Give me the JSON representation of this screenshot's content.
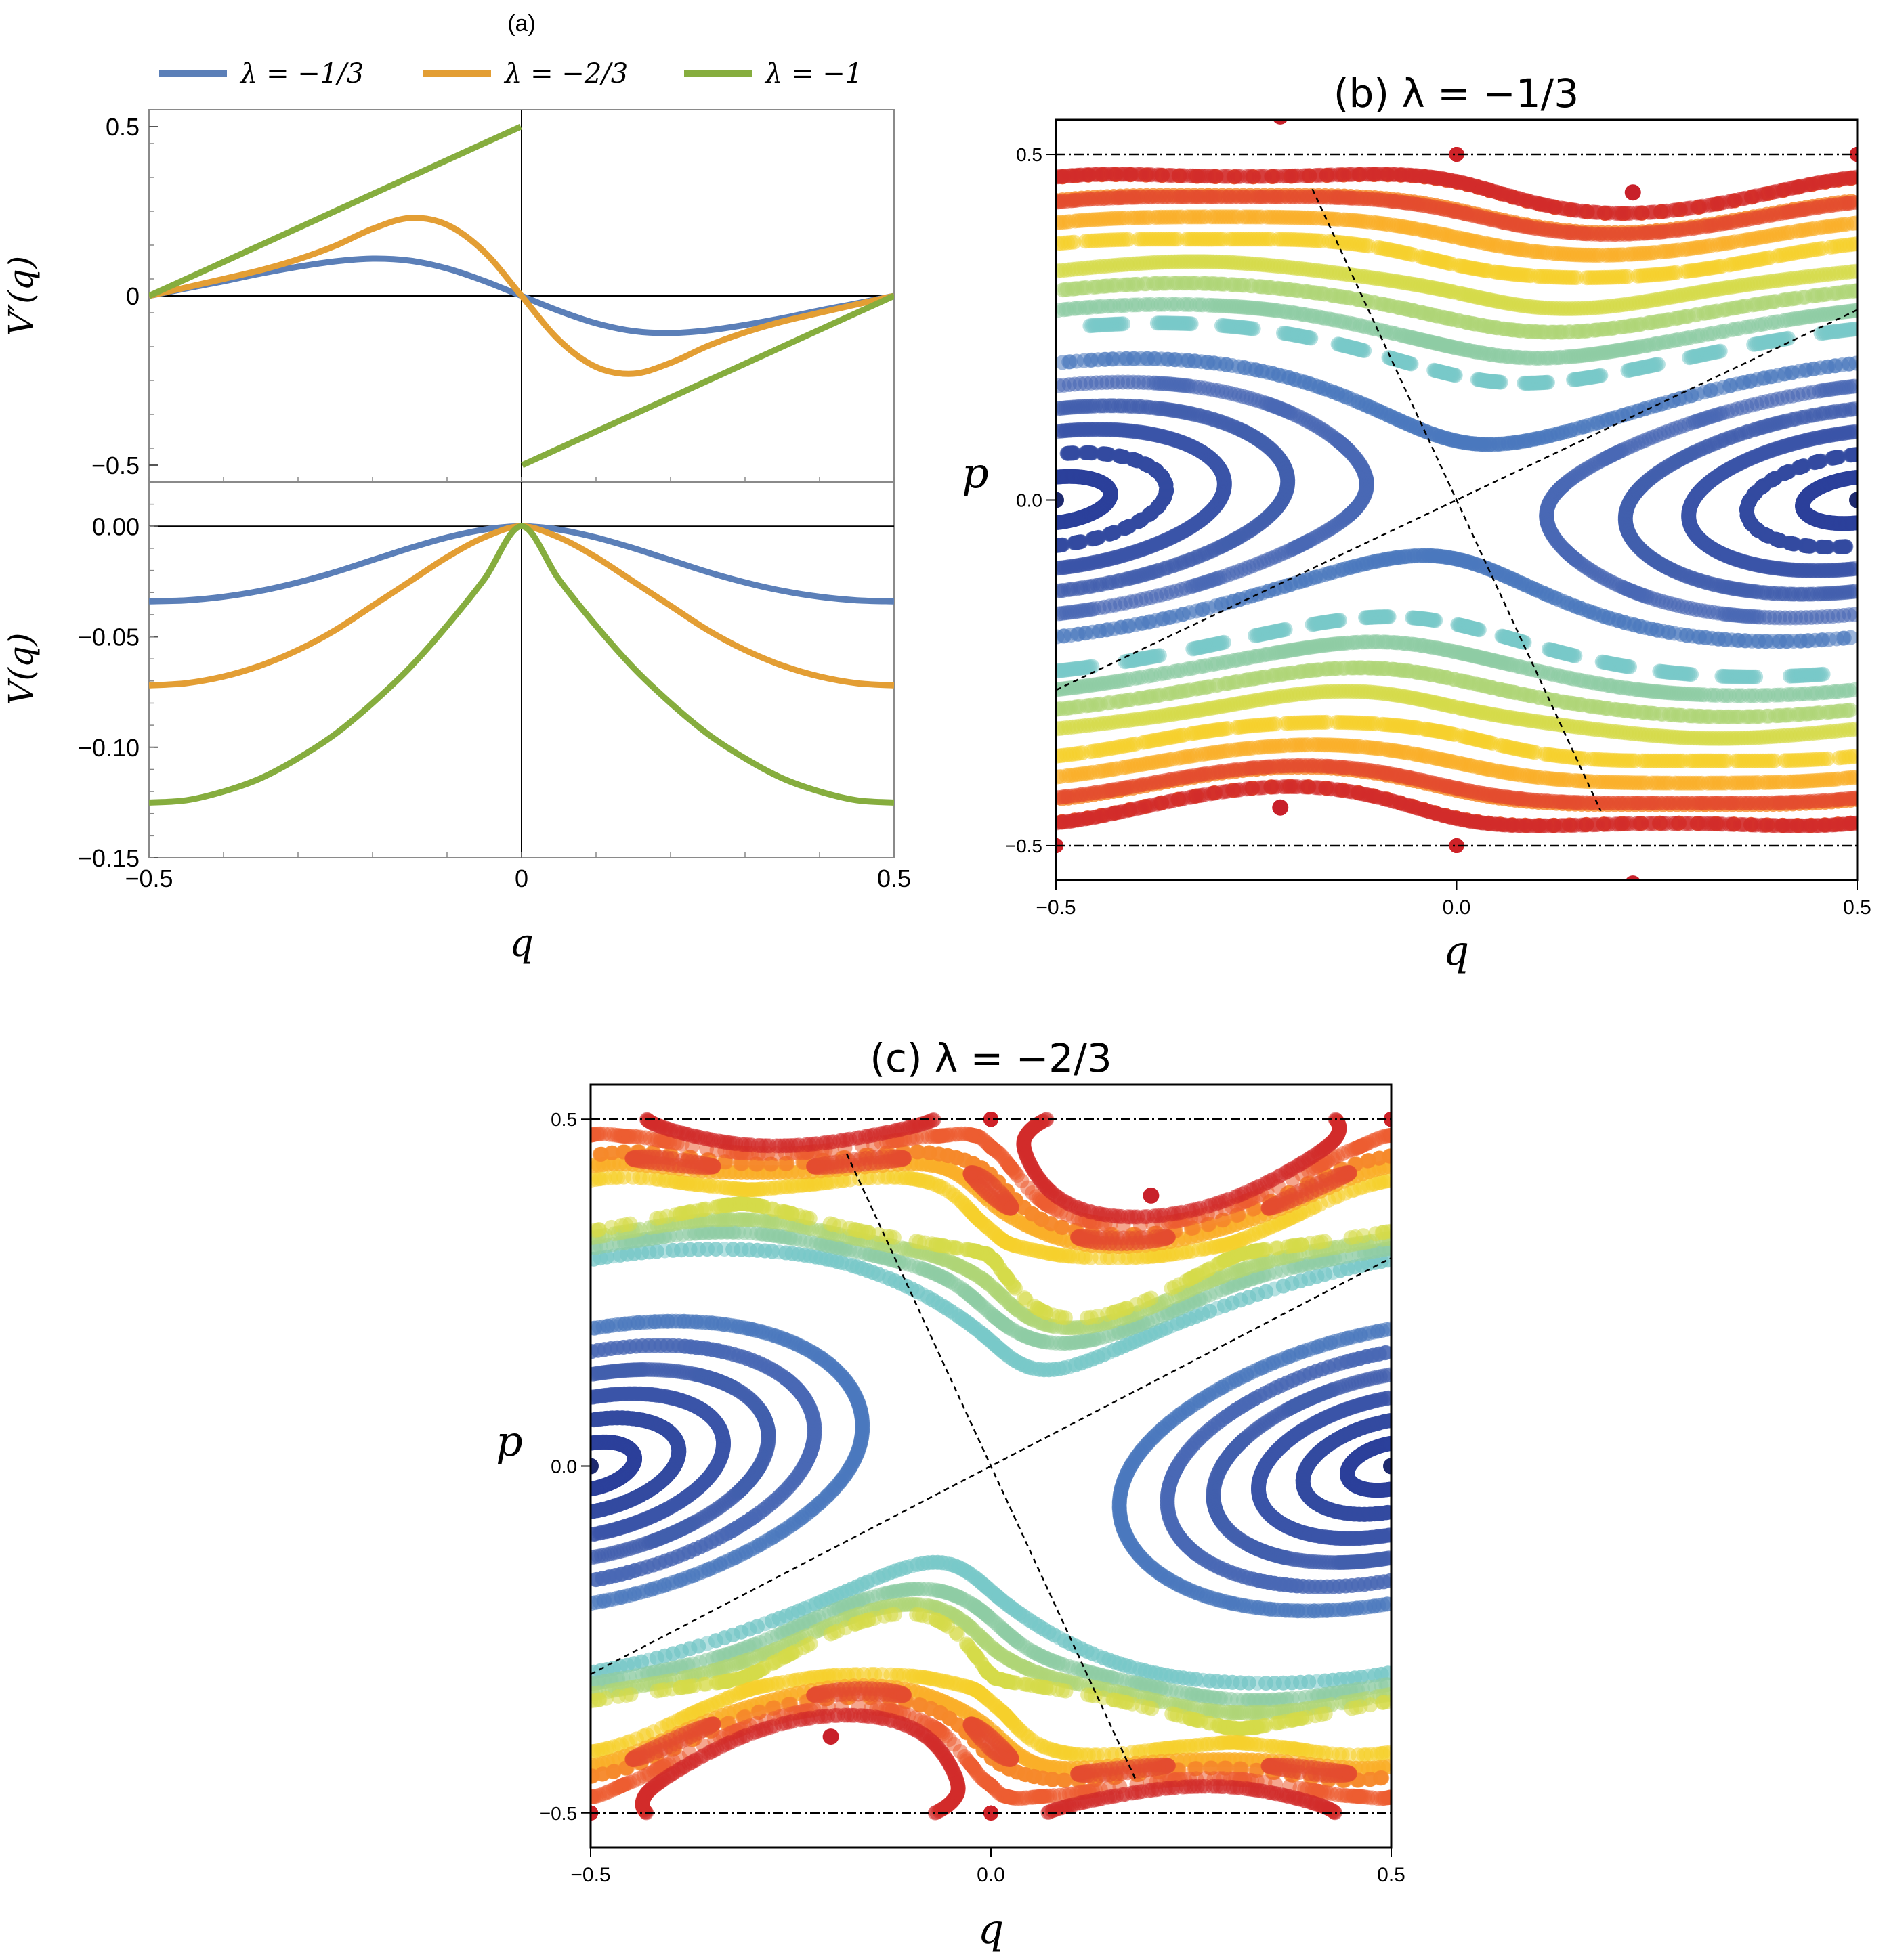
{
  "chart_data": [
    {
      "id": "a",
      "type": "line",
      "panel_label": "(a)",
      "legend": [
        "λ = −1/3",
        "λ = −2/3",
        "λ = −1"
      ],
      "series_colors": [
        "#5b7fb8",
        "#e39e34",
        "#86ad3e"
      ],
      "lambdas": [
        -0.3333,
        -0.6667,
        -1.0
      ],
      "xlabel": "q",
      "xlim": [
        -0.5,
        0.5
      ],
      "xticks": [
        "−0.5",
        "0",
        "0.5"
      ],
      "top": {
        "ylabel": "V′(q)",
        "ylim": [
          -0.55,
          0.55
        ],
        "yticks": [
          "0.5",
          "0",
          "−0.5"
        ],
        "series": [
          {
            "name": "λ = −1/3",
            "x": [
              -0.5,
              -0.45,
              -0.4,
              -0.35,
              -0.3,
              -0.25,
              -0.2,
              -0.15,
              -0.1,
              -0.05,
              0,
              0.05,
              0.1,
              0.15,
              0.2,
              0.25,
              0.3,
              0.35,
              0.4,
              0.45,
              0.5
            ],
            "values": [
              0,
              0.022,
              0.043,
              0.066,
              0.086,
              0.102,
              0.11,
              0.104,
              0.081,
              0.044,
              0,
              -0.044,
              -0.081,
              -0.104,
              -0.11,
              -0.102,
              -0.086,
              -0.066,
              -0.043,
              -0.022,
              0
            ]
          },
          {
            "name": "λ = −2/3",
            "x": [
              -0.5,
              -0.45,
              -0.4,
              -0.35,
              -0.3,
              -0.25,
              -0.2,
              -0.15,
              -0.1,
              -0.05,
              0,
              0.05,
              0.1,
              0.15,
              0.2,
              0.25,
              0.3,
              0.35,
              0.4,
              0.45,
              0.5
            ],
            "values": [
              0,
              0.025,
              0.05,
              0.076,
              0.108,
              0.148,
              0.198,
              0.23,
              0.21,
              0.13,
              0,
              -0.13,
              -0.21,
              -0.23,
              -0.198,
              -0.148,
              -0.108,
              -0.076,
              -0.05,
              -0.025,
              0
            ]
          },
          {
            "name": "λ = −1",
            "x": [
              -0.5,
              -0.001,
              0.001,
              0.5
            ],
            "values": [
              0,
              0.5,
              -0.5,
              0
            ]
          }
        ]
      },
      "bottom": {
        "ylabel": "V(q)",
        "ylim": [
          -0.15,
          0.02
        ],
        "yticks": [
          "0.00",
          "−0.05",
          "−0.10",
          "−0.15"
        ],
        "series": [
          {
            "name": "λ = −1/3",
            "x": [
              -0.5,
              -0.45,
              -0.4,
              -0.35,
              -0.3,
              -0.25,
              -0.2,
              -0.15,
              -0.1,
              -0.05,
              0,
              0.05,
              0.1,
              0.15,
              0.2,
              0.25,
              0.3,
              0.35,
              0.4,
              0.45,
              0.5
            ],
            "values": [
              -0.034,
              -0.0335,
              -0.0319,
              -0.0292,
              -0.0254,
              -0.0207,
              -0.0153,
              -0.0099,
              -0.0051,
              -0.0015,
              0,
              -0.0015,
              -0.0051,
              -0.0099,
              -0.0153,
              -0.0207,
              -0.0254,
              -0.0292,
              -0.0319,
              -0.0335,
              -0.034
            ]
          },
          {
            "name": "λ = −2/3",
            "x": [
              -0.5,
              -0.45,
              -0.4,
              -0.35,
              -0.3,
              -0.25,
              -0.2,
              -0.15,
              -0.1,
              -0.05,
              0,
              0.05,
              0.1,
              0.15,
              0.2,
              0.25,
              0.3,
              0.35,
              0.4,
              0.45,
              0.5
            ],
            "values": [
              -0.072,
              -0.071,
              -0.068,
              -0.063,
              -0.056,
              -0.047,
              -0.036,
              -0.025,
              -0.014,
              -0.005,
              0,
              -0.005,
              -0.014,
              -0.025,
              -0.036,
              -0.047,
              -0.056,
              -0.063,
              -0.068,
              -0.071,
              -0.072
            ]
          },
          {
            "name": "λ = −1",
            "x": [
              -0.5,
              -0.45,
              -0.4,
              -0.35,
              -0.3,
              -0.25,
              -0.2,
              -0.15,
              -0.1,
              -0.05,
              0,
              0.05,
              0.1,
              0.15,
              0.2,
              0.25,
              0.3,
              0.35,
              0.4,
              0.45,
              0.5
            ],
            "values": [
              -0.125,
              -0.124,
              -0.12,
              -0.114,
              -0.105,
              -0.094,
              -0.08,
              -0.064,
              -0.045,
              -0.024,
              0,
              -0.024,
              -0.045,
              -0.064,
              -0.08,
              -0.094,
              -0.105,
              -0.114,
              -0.12,
              -0.124,
              -0.125
            ]
          }
        ]
      }
    },
    {
      "id": "b",
      "type": "line",
      "title": "(b) λ = −1/3",
      "lambda": -0.3333,
      "xlabel": "q",
      "ylabel": "p",
      "xlim": [
        -0.5,
        0.5
      ],
      "ylim": [
        -0.55,
        0.55
      ],
      "xticks": [
        "−0.5",
        "0.0",
        "0.5"
      ],
      "yticks": [
        "0.5",
        "0.0",
        "−0.5"
      ],
      "fixed_points": {
        "elliptic_center": [
          [
            -0.5,
            0
          ],
          [
            0.5,
            0
          ]
        ],
        "island_center": [
          [
            -0.22,
            -0.445
          ],
          [
            0.22,
            0.445
          ],
          [
            -0.22,
            0.555
          ],
          [
            0.22,
            -0.555
          ]
        ],
        "hyperbolic": [
          [
            0,
            0
          ]
        ]
      }
    },
    {
      "id": "c",
      "type": "line",
      "title": "(c) λ = −2/3",
      "lambda": -0.6667,
      "xlabel": "q",
      "ylabel": "p",
      "xlim": [
        -0.5,
        0.5
      ],
      "ylim": [
        -0.55,
        0.55
      ],
      "xticks": [
        "−0.5",
        "0.0",
        "0.5"
      ],
      "yticks": [
        "0.5",
        "0.0",
        "−0.5"
      ],
      "fixed_points": {
        "elliptic_center": [
          [
            -0.5,
            0
          ],
          [
            0.5,
            0
          ]
        ],
        "island_center": [
          [
            -0.2,
            -0.39
          ],
          [
            0.2,
            0.39
          ]
        ],
        "hyperbolic": [
          [
            0,
            0
          ]
        ]
      }
    }
  ]
}
